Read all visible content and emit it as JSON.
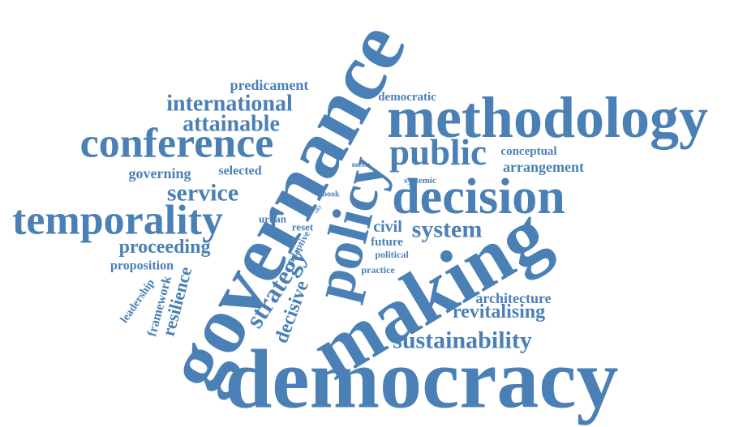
{
  "color": "#4a80b5",
  "words": [
    {
      "text": "democracy"
    },
    {
      "text": "governance"
    },
    {
      "text": "methodology"
    },
    {
      "text": "making"
    },
    {
      "text": "decision"
    },
    {
      "text": "policy"
    },
    {
      "text": "public"
    },
    {
      "text": "conference"
    },
    {
      "text": "temporality"
    },
    {
      "text": "international"
    },
    {
      "text": "attainable"
    },
    {
      "text": "predicament"
    },
    {
      "text": "democratic"
    },
    {
      "text": "conceptual"
    },
    {
      "text": "arrangement"
    },
    {
      "text": "governing"
    },
    {
      "text": "selected"
    },
    {
      "text": "service"
    },
    {
      "text": "messe"
    },
    {
      "text": "systemic"
    },
    {
      "text": "book"
    },
    {
      "text": "urban"
    },
    {
      "text": "reset"
    },
    {
      "text": "city"
    },
    {
      "text": "civil"
    },
    {
      "text": "system"
    },
    {
      "text": "future"
    },
    {
      "text": "political"
    },
    {
      "text": "adaptive"
    },
    {
      "text": "proceeding"
    },
    {
      "text": "proposition"
    },
    {
      "text": "strategy"
    },
    {
      "text": "decisive"
    },
    {
      "text": "practice"
    },
    {
      "text": "resilience"
    },
    {
      "text": "framework"
    },
    {
      "text": "leadership"
    },
    {
      "text": "architecture"
    },
    {
      "text": "revitalising"
    },
    {
      "text": "sustainability"
    }
  ]
}
